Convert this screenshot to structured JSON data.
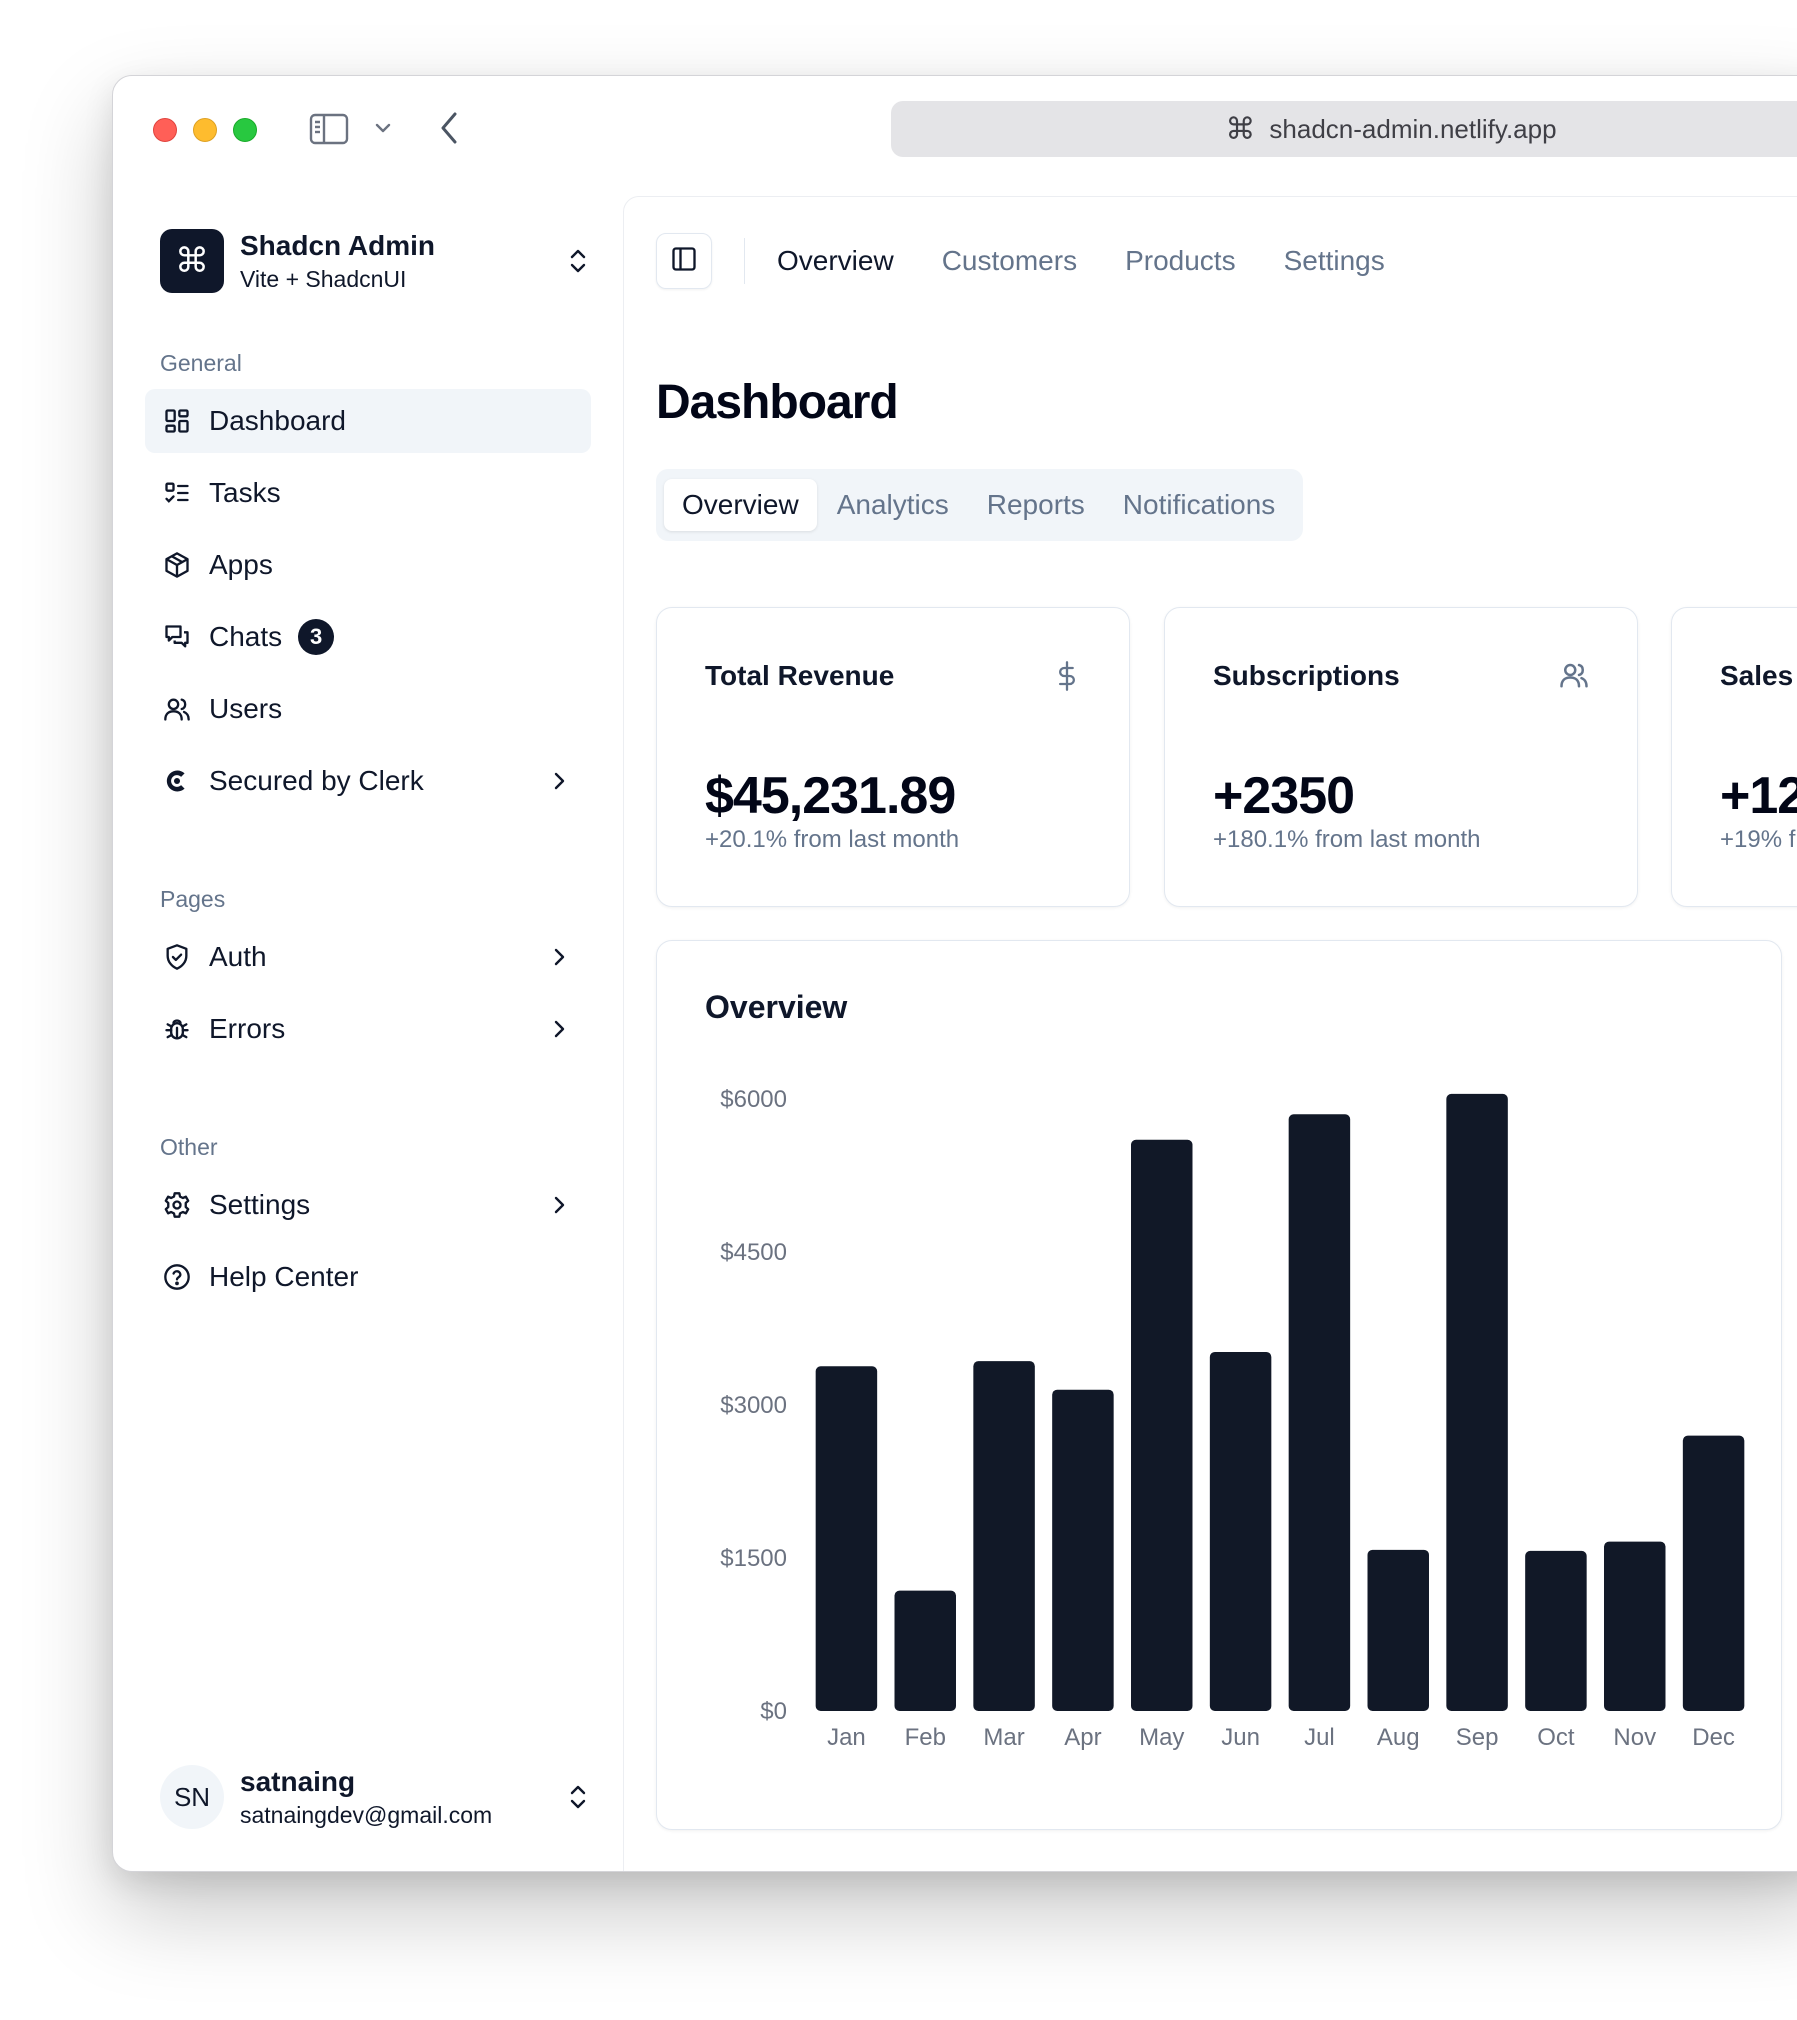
{
  "browser": {
    "url": "shadcn-admin.netlify.app"
  },
  "team": {
    "name": "Shadcn Admin",
    "subtitle": "Vite + ShadcnUI"
  },
  "sidebar": {
    "groups": [
      {
        "label": "General"
      },
      {
        "label": "Pages"
      },
      {
        "label": "Other"
      }
    ],
    "items": [
      {
        "label": "Dashboard"
      },
      {
        "label": "Tasks"
      },
      {
        "label": "Apps"
      },
      {
        "label": "Chats",
        "badge": "3"
      },
      {
        "label": "Users"
      },
      {
        "label": "Secured by Clerk"
      },
      {
        "label": "Auth"
      },
      {
        "label": "Errors"
      },
      {
        "label": "Settings"
      },
      {
        "label": "Help Center"
      }
    ]
  },
  "user": {
    "initials": "SN",
    "name": "satnaing",
    "email": "satnaingdev@gmail.com"
  },
  "topnav": {
    "links": [
      "Overview",
      "Customers",
      "Products",
      "Settings"
    ]
  },
  "page": {
    "title": "Dashboard"
  },
  "tabs": [
    "Overview",
    "Analytics",
    "Reports",
    "Notifications"
  ],
  "stats": [
    {
      "label": "Total Revenue",
      "value": "$45,231.89",
      "delta": "+20.1% from last month",
      "icon": "dollar-icon"
    },
    {
      "label": "Subscriptions",
      "value": "+2350",
      "delta": "+180.1% from last month",
      "icon": "users-icon"
    },
    {
      "label": "Sales",
      "value": "+12",
      "delta": "+19% f",
      "icon": "credit-card-icon"
    }
  ],
  "overview": {
    "title": "Overview"
  },
  "colors": {
    "bar": "#111827",
    "muted": "#64748b",
    "accent": "#0f172a"
  },
  "chart_data": {
    "type": "bar",
    "title": "Overview",
    "categories": [
      "Jan",
      "Feb",
      "Mar",
      "Apr",
      "May",
      "Jun",
      "Jul",
      "Aug",
      "Sep",
      "Oct",
      "Nov",
      "Dec"
    ],
    "values": [
      3380,
      1180,
      3430,
      3150,
      5600,
      3520,
      5850,
      1580,
      6050,
      1570,
      1660,
      2700
    ],
    "yticks": [
      "$0",
      "$1500",
      "$3000",
      "$4500",
      "$6000"
    ],
    "ylim": [
      0,
      6000
    ],
    "grid": false,
    "legend": "none"
  }
}
